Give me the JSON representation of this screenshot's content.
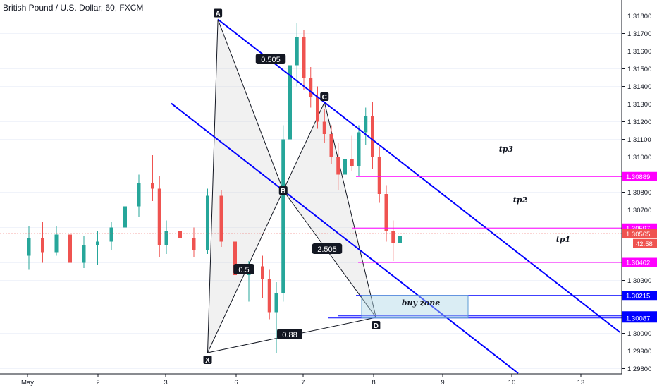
{
  "header": {
    "title": "British Pound / U.S. Dollar, 60, FXCM"
  },
  "colors": {
    "up": "#26a69a",
    "down": "#ef5350",
    "trend": "#0000ff",
    "target": "#ff00ff",
    "pattern": "#131722"
  },
  "chart_data": {
    "type": "candlestick",
    "symbol": "British Pound / U.S. Dollar",
    "interval": "60",
    "source": "FXCM",
    "ylim": [
      1.2977,
      1.3189
    ],
    "y_tick_labels": [
      "1.31800",
      "1.31700",
      "1.31600",
      "1.31500",
      "1.31400",
      "1.31300",
      "1.31200",
      "1.31100",
      "1.31000",
      "1.30800",
      "1.30700",
      "1.30600",
      "1.30400",
      "1.30300",
      "1.30000",
      "1.29900",
      "1.29800"
    ],
    "x_tick_labels": [
      "May",
      "2",
      "3",
      "6",
      "7",
      "8",
      "9",
      "10",
      "13"
    ],
    "price_tags": [
      {
        "label": "1.30889",
        "value": 1.30889,
        "color": "#ff00ff"
      },
      {
        "label": "1.30597",
        "value": 1.30597,
        "color": "#ff00ff"
      },
      {
        "label": "1.30565",
        "value": 1.30565,
        "color": "#ef5350"
      },
      {
        "label": "1.30402",
        "value": 1.30402,
        "color": "#ff00ff"
      },
      {
        "label": "1.30215",
        "value": 1.30215,
        "color": "#0000ff"
      },
      {
        "label": "1.30099",
        "value": 1.30099,
        "color": "#0000ff"
      },
      {
        "label": "1.30087",
        "value": 1.30087,
        "color": "#0000ff"
      }
    ],
    "countdown": "42:58",
    "pattern_points": [
      {
        "label": "X",
        "price": 1.2989
      },
      {
        "label": "A",
        "price": 1.3178
      },
      {
        "label": "B",
        "price": 1.3081
      },
      {
        "label": "C",
        "price": 1.3131
      },
      {
        "label": "D",
        "price": 1.3009
      }
    ],
    "ratios": [
      {
        "label": "0.505",
        "between": "B-C"
      },
      {
        "label": "0.5",
        "between": "X-B"
      },
      {
        "label": "2.505",
        "between": "B-D"
      },
      {
        "label": "0.88",
        "between": "X-D"
      }
    ],
    "targets": [
      {
        "label": "tp3",
        "price": 1.30889
      },
      {
        "label": "tp2",
        "price": 1.30597
      },
      {
        "label": "tp1",
        "price": 1.30402
      }
    ],
    "zone": {
      "label": "buy zone",
      "top": 1.30215,
      "bottom": 1.30087
    },
    "candles": [
      {
        "day": 0.0,
        "o": 1.3044,
        "h": 1.3061,
        "l": 1.3036,
        "c": 1.3054
      },
      {
        "day": 0.2,
        "o": 1.3054,
        "h": 1.3063,
        "l": 1.304,
        "c": 1.3046
      },
      {
        "day": 0.4,
        "o": 1.3046,
        "h": 1.3061,
        "l": 1.3044,
        "c": 1.3056
      },
      {
        "day": 0.6,
        "o": 1.3056,
        "h": 1.3062,
        "l": 1.3034,
        "c": 1.304
      },
      {
        "day": 0.8,
        "o": 1.304,
        "h": 1.3055,
        "l": 1.3037,
        "c": 1.305
      },
      {
        "day": 1.0,
        "o": 1.305,
        "h": 1.3058,
        "l": 1.3039,
        "c": 1.3052
      },
      {
        "day": 1.2,
        "o": 1.3052,
        "h": 1.3063,
        "l": 1.3047,
        "c": 1.306
      },
      {
        "day": 1.4,
        "o": 1.306,
        "h": 1.3075,
        "l": 1.3056,
        "c": 1.3072
      },
      {
        "day": 1.6,
        "o": 1.3072,
        "h": 1.309,
        "l": 1.3066,
        "c": 1.3085
      },
      {
        "day": 1.8,
        "o": 1.3085,
        "h": 1.3101,
        "l": 1.3075,
        "c": 1.3082
      },
      {
        "day": 1.9,
        "o": 1.3082,
        "h": 1.3089,
        "l": 1.3043,
        "c": 1.305
      },
      {
        "day": 2.0,
        "o": 1.305,
        "h": 1.3064,
        "l": 1.3045,
        "c": 1.3058
      },
      {
        "day": 2.2,
        "o": 1.3058,
        "h": 1.3066,
        "l": 1.3049,
        "c": 1.3054
      },
      {
        "day": 2.4,
        "o": 1.3054,
        "h": 1.306,
        "l": 1.3043,
        "c": 1.3047
      },
      {
        "day": 2.6,
        "o": 1.3047,
        "h": 1.3082,
        "l": 1.3045,
        "c": 1.3078
      },
      {
        "day": 2.8,
        "o": 1.3078,
        "h": 1.3081,
        "l": 1.3049,
        "c": 1.3052
      },
      {
        "day": 3.0,
        "o": 1.3052,
        "h": 1.3056,
        "l": 1.3027,
        "c": 1.3033
      },
      {
        "day": 3.2,
        "o": 1.3033,
        "h": 1.3041,
        "l": 1.3018,
        "c": 1.3038
      },
      {
        "day": 3.4,
        "o": 1.3038,
        "h": 1.3044,
        "l": 1.302,
        "c": 1.3031
      },
      {
        "day": 3.5,
        "o": 1.3031,
        "h": 1.3036,
        "l": 1.3008,
        "c": 1.3012
      },
      {
        "day": 3.6,
        "o": 1.3012,
        "h": 1.3029,
        "l": 1.2989,
        "c": 1.3023
      },
      {
        "day": 3.7,
        "o": 1.3023,
        "h": 1.3118,
        "l": 1.3018,
        "c": 1.311
      },
      {
        "day": 3.8,
        "o": 1.311,
        "h": 1.316,
        "l": 1.3105,
        "c": 1.3152
      },
      {
        "day": 3.9,
        "o": 1.3152,
        "h": 1.3176,
        "l": 1.314,
        "c": 1.3168
      },
      {
        "day": 4.0,
        "o": 1.3168,
        "h": 1.3172,
        "l": 1.3138,
        "c": 1.3145
      },
      {
        "day": 4.1,
        "o": 1.3145,
        "h": 1.3151,
        "l": 1.3128,
        "c": 1.3134
      },
      {
        "day": 4.2,
        "o": 1.3134,
        "h": 1.314,
        "l": 1.3116,
        "c": 1.312
      },
      {
        "day": 4.3,
        "o": 1.312,
        "h": 1.3127,
        "l": 1.3108,
        "c": 1.3113
      },
      {
        "day": 4.4,
        "o": 1.3113,
        "h": 1.3118,
        "l": 1.3096,
        "c": 1.31
      },
      {
        "day": 4.5,
        "o": 1.31,
        "h": 1.3108,
        "l": 1.3081,
        "c": 1.309
      },
      {
        "day": 4.6,
        "o": 1.309,
        "h": 1.3104,
        "l": 1.3084,
        "c": 1.3099
      },
      {
        "day": 4.7,
        "o": 1.3099,
        "h": 1.3112,
        "l": 1.3092,
        "c": 1.3095
      },
      {
        "day": 4.8,
        "o": 1.3095,
        "h": 1.3118,
        "l": 1.3089,
        "c": 1.3114
      },
      {
        "day": 4.9,
        "o": 1.3114,
        "h": 1.3128,
        "l": 1.3107,
        "c": 1.3123
      },
      {
        "day": 5.0,
        "o": 1.3123,
        "h": 1.3131,
        "l": 1.3093,
        "c": 1.31
      },
      {
        "day": 5.1,
        "o": 1.31,
        "h": 1.3106,
        "l": 1.3074,
        "c": 1.3079
      },
      {
        "day": 5.2,
        "o": 1.3079,
        "h": 1.3084,
        "l": 1.3052,
        "c": 1.3058
      },
      {
        "day": 5.3,
        "o": 1.3058,
        "h": 1.3064,
        "l": 1.3041,
        "c": 1.3051
      },
      {
        "day": 5.4,
        "o": 1.3051,
        "h": 1.3057,
        "l": 1.3041,
        "c": 1.3055
      }
    ]
  }
}
